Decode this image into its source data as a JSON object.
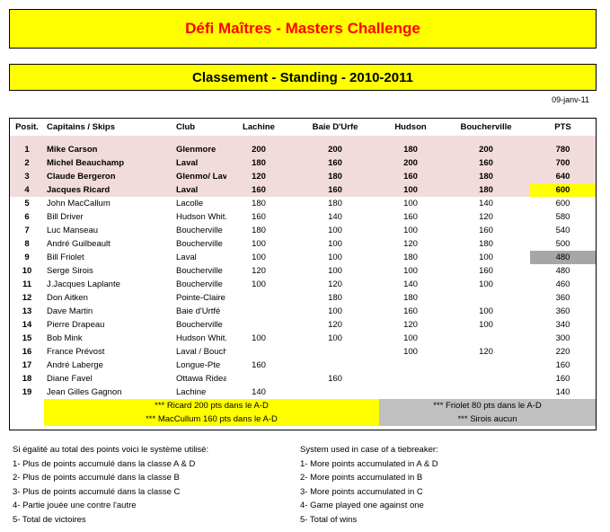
{
  "title": "Défi Maîtres - Masters Challenge",
  "subtitle": "Classement - Standing - 2010-2011",
  "date": "09-janv-11",
  "columns": [
    "Posit.",
    "Capitains / Skips",
    "Club",
    "Lachine",
    "Baie D'Urfe",
    "Hudson",
    "Boucherville",
    "PTS"
  ],
  "rows": [
    {
      "pos": "1",
      "name": "Mike Carson",
      "club": "Glenmore",
      "lachine": "200",
      "baie": "200",
      "hudson": "180",
      "boucherville": "200",
      "pts": "780"
    },
    {
      "pos": "2",
      "name": "Michel Beauchamp",
      "club": "Laval",
      "lachine": "180",
      "baie": "160",
      "hudson": "200",
      "boucherville": "160",
      "pts": "700"
    },
    {
      "pos": "3",
      "name": "Claude Bergeron",
      "club": "Glenmo/ Laval",
      "lachine": "120",
      "baie": "180",
      "hudson": "160",
      "boucherville": "180",
      "pts": "640"
    },
    {
      "pos": "4",
      "name": "Jacques Ricard",
      "club": "Laval",
      "lachine": "160",
      "baie": "160",
      "hudson": "100",
      "boucherville": "180",
      "pts": "600"
    },
    {
      "pos": "5",
      "name": "John MacCallum",
      "club": "Lacolle",
      "lachine": "180",
      "baie": "180",
      "hudson": "100",
      "boucherville": "140",
      "pts": "600"
    },
    {
      "pos": "6",
      "name": "Bill Driver",
      "club": "Hudson Whit.",
      "lachine": "160",
      "baie": "140",
      "hudson": "160",
      "boucherville": "120",
      "pts": "580"
    },
    {
      "pos": "7",
      "name": "Luc Manseau",
      "club": "Boucherville",
      "lachine": "180",
      "baie": "100",
      "hudson": "100",
      "boucherville": "160",
      "pts": "540"
    },
    {
      "pos": "8",
      "name": "André Guilbeault",
      "club": "Boucherville",
      "lachine": "100",
      "baie": "100",
      "hudson": "120",
      "boucherville": "180",
      "pts": "500"
    },
    {
      "pos": "9",
      "name": "Bill Friolet",
      "club": "Laval",
      "lachine": "100",
      "baie": "100",
      "hudson": "180",
      "boucherville": "100",
      "pts": "480"
    },
    {
      "pos": "10",
      "name": "Serge Sirois",
      "club": "Boucherville",
      "lachine": "120",
      "baie": "100",
      "hudson": "100",
      "boucherville": "160",
      "pts": "480"
    },
    {
      "pos": "11",
      "name": "J.Jacques Laplante",
      "club": "Boucherville",
      "lachine": "100",
      "baie": "120",
      "hudson": "140",
      "boucherville": "100",
      "pts": "460"
    },
    {
      "pos": "12",
      "name": "Don Aitken",
      "club": "Pointe-Claire",
      "lachine": "",
      "baie": "180",
      "hudson": "180",
      "boucherville": "",
      "pts": "360"
    },
    {
      "pos": "13",
      "name": "Dave Martin",
      "club": "Baie d'Urtfé",
      "lachine": "",
      "baie": "100",
      "hudson": "160",
      "boucherville": "100",
      "pts": "360"
    },
    {
      "pos": "14",
      "name": "Pierre Drapeau",
      "club": "Boucherville",
      "lachine": "",
      "baie": "120",
      "hudson": "120",
      "boucherville": "100",
      "pts": "340"
    },
    {
      "pos": "15",
      "name": "Bob Mink",
      "club": "Hudson Whit.",
      "lachine": "100",
      "baie": "100",
      "hudson": "100",
      "boucherville": "",
      "pts": "300"
    },
    {
      "pos": "16",
      "name": "France Prévost",
      "club": "Laval / Boucher",
      "lachine": "",
      "baie": "",
      "hudson": "100",
      "boucherville": "120",
      "pts": "220"
    },
    {
      "pos": "17",
      "name": "André Laberge",
      "club": "Longue-Pte",
      "lachine": "160",
      "baie": "",
      "hudson": "",
      "boucherville": "",
      "pts": "160"
    },
    {
      "pos": "18",
      "name": "Diane Favel",
      "club": "Ottawa Rideau",
      "lachine": "",
      "baie": "160",
      "hudson": "",
      "boucherville": "",
      "pts": "160"
    },
    {
      "pos": "19",
      "name": "Jean Gilles Gagnon",
      "club": "Lachine",
      "lachine": "140",
      "baie": "",
      "hudson": "",
      "boucherville": "",
      "pts": "140"
    }
  ],
  "notes_table": {
    "left": [
      "*** Ricard 200 pts dans le A-D",
      "*** MacCullum 160 pts dans le A-D"
    ],
    "right": [
      "*** Friolet 80 pts dans le A-D",
      "*** Sirois aucun"
    ]
  },
  "tiebreak_fr": {
    "heading": "Si égalité au total des points voici le système utilisé:",
    "items": [
      "1- Plus de points accumulé dans la classe A & D",
      "2- Plus de points accumulé dans la classe B",
      "3- Plus de points accumulé dans la classe C",
      "4- Partie jouée une contre l'autre",
      "5- Total de victoires"
    ]
  },
  "tiebreak_en": {
    "heading": "System used in case of a  tiebreaker:",
    "items": [
      "1- More points accumulated in A & D",
      "2- More points accumulated in B",
      "3- More points accumulated in C",
      "4- Game played one against one",
      "5- Total of wins"
    ]
  },
  "colors": {
    "title_bg": "#ffff00",
    "title_text": "#ff0000",
    "top_rows_bg": "#f2dcdb",
    "gray": "#a6a6a6"
  }
}
